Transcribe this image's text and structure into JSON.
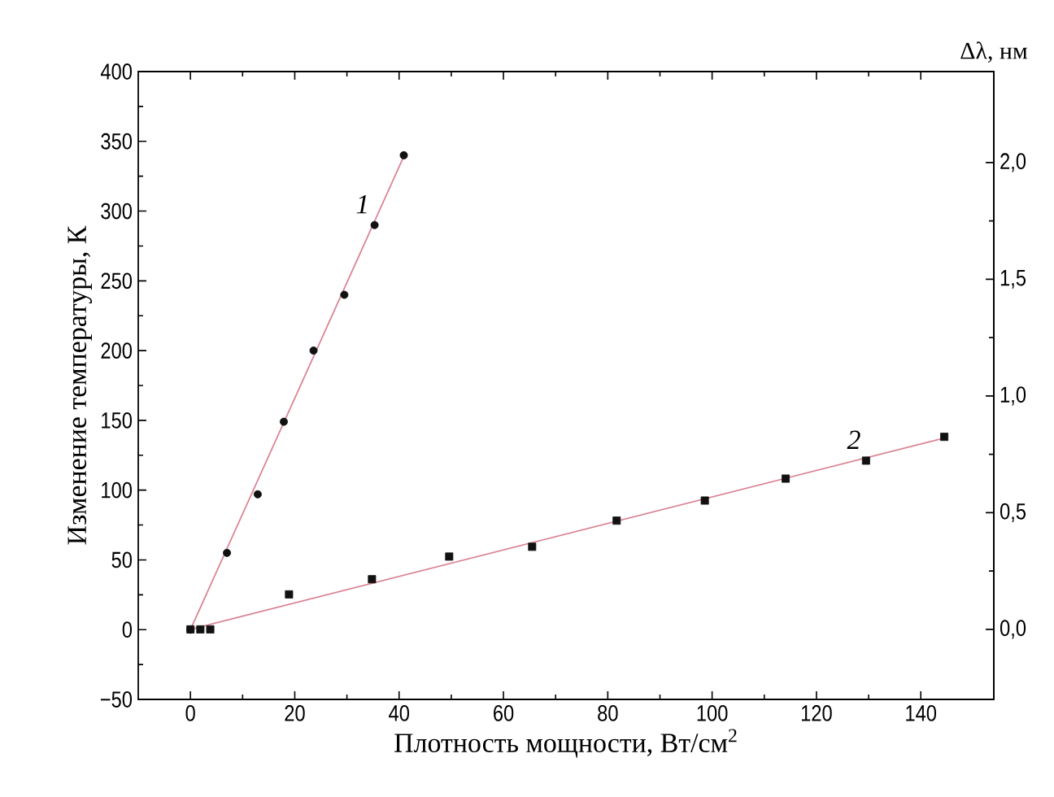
{
  "chart_data": {
    "type": "scatter",
    "xlabel": "Плотность мощности, Вт/см$^{2}$",
    "ylabel": "Изменение температуры, К",
    "y2label": "Δλ, нм",
    "xlim": [
      -10,
      154
    ],
    "xticks": [
      0,
      20,
      40,
      60,
      80,
      100,
      120,
      140
    ],
    "ylim": [
      -50,
      400
    ],
    "yticks": [
      {
        "value": -50,
        "label": "−50"
      },
      0,
      50,
      100,
      150,
      200,
      250,
      300,
      350,
      400
    ],
    "y2lim": [
      -0.3,
      2.39
    ],
    "y2ticks": [
      {
        "value": 0,
        "label": "0,0"
      },
      {
        "value": 0.5,
        "label": "0,5"
      },
      {
        "value": 1,
        "label": "1,0"
      },
      {
        "value": 1.5,
        "label": "1,5"
      },
      {
        "value": 2,
        "label": "2,0"
      }
    ],
    "series": [
      {
        "name": "1",
        "marker": "circle",
        "color": "#111111",
        "x": [
          0,
          7,
          12.9,
          17.9,
          23.6,
          29.5,
          35.3,
          40.9
        ],
        "values": [
          0,
          55,
          97,
          149,
          200,
          240,
          290,
          340
        ]
      },
      {
        "type": "line",
        "marker": "none",
        "line_style": "solid",
        "color": "#d98595",
        "x": [
          0,
          41
        ],
        "values": [
          0,
          340
        ]
      },
      {
        "name": "2",
        "marker": "square",
        "axis": "y2",
        "color": "#111111",
        "x": [
          0,
          1.9,
          3.8,
          18.9,
          34.8,
          49.6,
          65.5,
          81.7,
          98.6,
          114.1,
          129.5,
          144.5
        ],
        "values": [
          0,
          0,
          0,
          0.15,
          0.215,
          0.312,
          0.354,
          0.466,
          0.552,
          0.646,
          0.723,
          0.825
        ]
      },
      {
        "type": "line",
        "marker": "none",
        "line_style": "solid",
        "axis": "y2",
        "color": "#d98595",
        "x": [
          0,
          144.5
        ],
        "values": [
          0,
          0.82
        ]
      }
    ]
  }
}
